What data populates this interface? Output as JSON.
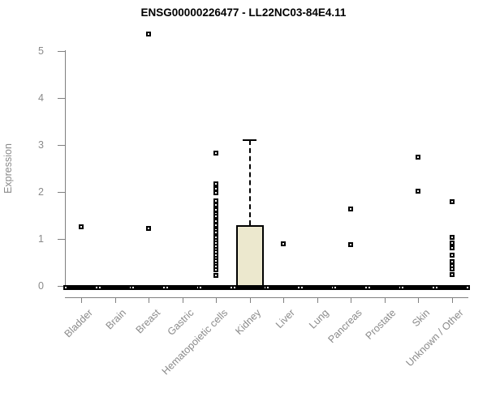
{
  "chart_data": {
    "type": "box",
    "title": "ENSG00000226477 - LL22NC03-84E4.11",
    "ylabel": "Expression",
    "xlabel": "",
    "ylim": [
      0,
      5
    ],
    "yticks": [
      0,
      1,
      2,
      3,
      4,
      5
    ],
    "grid": false,
    "legend": "none",
    "categories": [
      "Bladder",
      "Brain",
      "Breast",
      "Gastric",
      "Hematopoietic cells",
      "Kidney",
      "Liver",
      "Lung",
      "Pancreas",
      "Prostate",
      "Skin",
      "Unknown / Other"
    ],
    "series": [
      {
        "category": "Bladder",
        "q1": 0,
        "median": 0,
        "q3": 0,
        "whisker_low": 0,
        "whisker_high": 0,
        "outliers": [
          1.26
        ]
      },
      {
        "category": "Brain",
        "q1": 0,
        "median": 0,
        "q3": 0,
        "whisker_low": 0,
        "whisker_high": 0,
        "outliers": []
      },
      {
        "category": "Breast",
        "q1": 0,
        "median": 0,
        "q3": 0,
        "whisker_low": 0,
        "whisker_high": 0,
        "outliers": [
          5.36,
          1.22
        ]
      },
      {
        "category": "Gastric",
        "q1": 0,
        "median": 0,
        "q3": 0,
        "whisker_low": 0,
        "whisker_high": 0,
        "outliers": []
      },
      {
        "category": "Hematopoietic cells",
        "q1": 0,
        "median": 0,
        "q3": 0,
        "whisker_low": 0,
        "whisker_high": 0,
        "outliers": [
          2.83,
          2.17,
          2.07,
          1.98,
          1.81,
          1.72,
          1.62,
          1.53,
          1.48,
          1.38,
          1.29,
          1.19,
          1.14,
          1.03,
          0.97,
          0.91,
          0.84,
          0.78,
          0.72,
          0.66,
          0.59,
          0.53,
          0.47,
          0.41,
          0.34,
          0.22
        ]
      },
      {
        "category": "Kidney",
        "q1": 0,
        "median": 0,
        "q3": 1.3,
        "whisker_low": 0,
        "whisker_high": 3.1,
        "outliers": []
      },
      {
        "category": "Liver",
        "q1": 0,
        "median": 0,
        "q3": 0,
        "whisker_low": 0,
        "whisker_high": 0,
        "outliers": [
          0.9
        ]
      },
      {
        "category": "Lung",
        "q1": 0,
        "median": 0,
        "q3": 0,
        "whisker_low": 0,
        "whisker_high": 0,
        "outliers": []
      },
      {
        "category": "Pancreas",
        "q1": 0,
        "median": 0,
        "q3": 0,
        "whisker_low": 0,
        "whisker_high": 0,
        "outliers": [
          1.64,
          0.88
        ]
      },
      {
        "category": "Prostate",
        "q1": 0,
        "median": 0,
        "q3": 0,
        "whisker_low": 0,
        "whisker_high": 0,
        "outliers": []
      },
      {
        "category": "Skin",
        "q1": 0,
        "median": 0,
        "q3": 0,
        "whisker_low": 0,
        "whisker_high": 0,
        "outliers": [
          2.74,
          2.02
        ]
      },
      {
        "category": "Unknown / Other",
        "q1": 0,
        "median": 0,
        "q3": 0,
        "whisker_low": 0,
        "whisker_high": 0,
        "outliers": [
          1.79,
          1.03,
          0.91,
          0.81,
          0.66,
          0.52,
          0.43,
          0.36,
          0.25
        ]
      }
    ],
    "colors": {
      "box_fill": "#ECE8CE",
      "box_border": "#000000",
      "marker": "#000000",
      "axis": "#808080",
      "tick_label": "#8a8a8a",
      "title": "#000000"
    }
  }
}
